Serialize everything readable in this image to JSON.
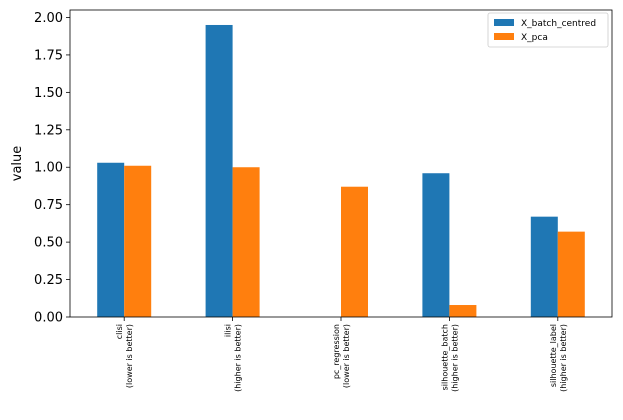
{
  "chart_data": {
    "type": "bar",
    "ylabel": "value",
    "xlabel": "",
    "ylim": [
      0,
      2.05
    ],
    "yticks": [
      "0.00",
      "0.25",
      "0.50",
      "0.75",
      "1.00",
      "1.25",
      "1.50",
      "1.75",
      "2.00"
    ],
    "grid": false,
    "legend_position": "top-right",
    "categories": [
      [
        "clisi",
        "(lower is better)"
      ],
      [
        "ilisi",
        "(higher is better)"
      ],
      [
        "pc_regression",
        "(lower is better)"
      ],
      [
        "silhouette_batch",
        "(higher is better)"
      ],
      [
        "silhouette_label",
        "(higher is better)"
      ]
    ],
    "series": [
      {
        "name": "X_batch_centred",
        "color": "#1f77b4",
        "values": [
          1.03,
          1.95,
          0.0,
          0.96,
          0.67
        ]
      },
      {
        "name": "X_pca",
        "color": "#ff7f0e",
        "values": [
          1.01,
          1.0,
          0.87,
          0.08,
          0.57
        ]
      }
    ]
  }
}
